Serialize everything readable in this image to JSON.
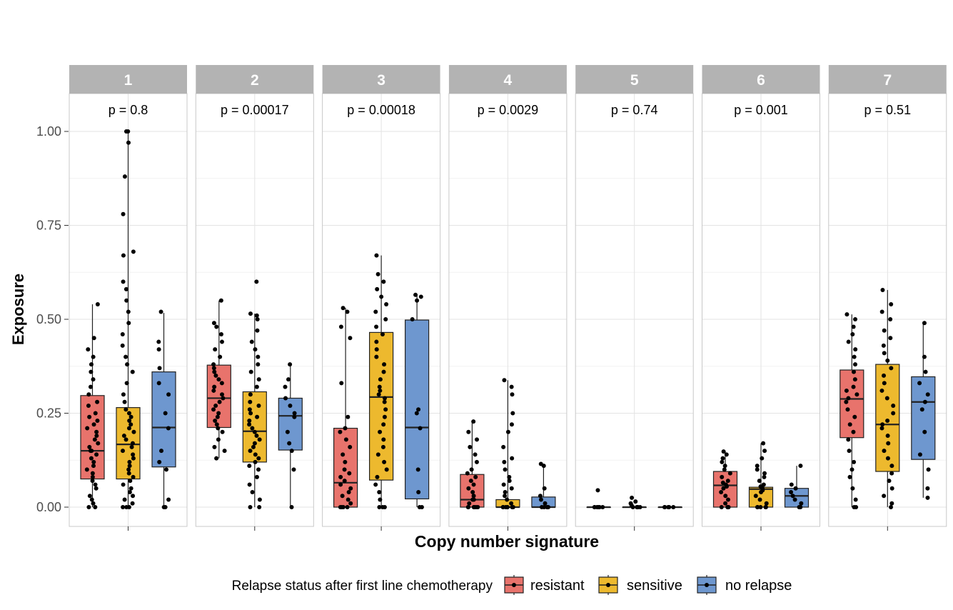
{
  "chart_data": {
    "type": "boxplot",
    "facet_var_label": "Copy number signature",
    "xlabel": "Copy number signature",
    "ylabel": "Exposure",
    "ylim": [
      -0.05,
      1.1
    ],
    "y_ticks": [
      0.0,
      0.25,
      0.5,
      0.75,
      1.0
    ],
    "y_tick_labels": [
      "0.00",
      "0.25",
      "0.50",
      "0.75",
      "1.00"
    ],
    "grid": true,
    "legend": {
      "title": "Relapse status after first line chemotherapy",
      "position": "bottom",
      "entries": [
        "resistant",
        "sensitive",
        "no relapse"
      ]
    },
    "colors": {
      "resistant": "#E8736C",
      "sensitive": "#EDB92E",
      "no relapse": "#6E97CF",
      "strip": "#B3B3B3",
      "points": "#000000"
    },
    "facets": [
      {
        "label": "1",
        "p_label": "p = 0.8",
        "boxes": [
          {
            "group": "resistant",
            "q1": 0.075,
            "median": 0.15,
            "q3": 0.297,
            "whisker_low": 0.0,
            "whisker_high": 0.54
          },
          {
            "group": "sensitive",
            "q1": 0.075,
            "median": 0.167,
            "q3": 0.265,
            "whisker_low": 0.0,
            "whisker_high": 1.0
          },
          {
            "group": "no relapse",
            "q1": 0.107,
            "median": 0.212,
            "q3": 0.36,
            "whisker_low": 0.0,
            "whisker_high": 0.517
          }
        ],
        "points": {
          "resistant": [
            0.0,
            0.0,
            0.01,
            0.02,
            0.03,
            0.05,
            0.06,
            0.07,
            0.08,
            0.09,
            0.1,
            0.11,
            0.12,
            0.13,
            0.14,
            0.15,
            0.15,
            0.16,
            0.17,
            0.18,
            0.19,
            0.2,
            0.21,
            0.22,
            0.23,
            0.24,
            0.25,
            0.27,
            0.28,
            0.3,
            0.32,
            0.34,
            0.36,
            0.38,
            0.4,
            0.42,
            0.45,
            0.54
          ],
          "sensitive": [
            0.0,
            0.0,
            0.0,
            0.01,
            0.02,
            0.03,
            0.04,
            0.05,
            0.06,
            0.07,
            0.08,
            0.09,
            0.1,
            0.11,
            0.12,
            0.13,
            0.14,
            0.15,
            0.16,
            0.17,
            0.18,
            0.19,
            0.2,
            0.21,
            0.22,
            0.23,
            0.24,
            0.25,
            0.26,
            0.28,
            0.3,
            0.33,
            0.36,
            0.38,
            0.4,
            0.43,
            0.46,
            0.49,
            0.52,
            0.55,
            0.58,
            0.6,
            0.67,
            0.68,
            0.78,
            0.88,
            0.97,
            1.0,
            1.0
          ],
          "no relapse": [
            0.0,
            0.0,
            0.02,
            0.1,
            0.12,
            0.15,
            0.21,
            0.25,
            0.3,
            0.33,
            0.37,
            0.42,
            0.44,
            0.52
          ]
        }
      },
      {
        "label": "2",
        "p_label": "p = 0.00017",
        "boxes": [
          {
            "group": "resistant",
            "q1": 0.212,
            "median": 0.29,
            "q3": 0.378,
            "whisker_low": 0.13,
            "whisker_high": 0.55
          },
          {
            "group": "sensitive",
            "q1": 0.12,
            "median": 0.202,
            "q3": 0.307,
            "whisker_low": 0.0,
            "whisker_high": 0.515
          },
          {
            "group": "no relapse",
            "q1": 0.152,
            "median": 0.243,
            "q3": 0.29,
            "whisker_low": 0.0,
            "whisker_high": 0.38
          }
        ],
        "points": {
          "resistant": [
            0.13,
            0.15,
            0.16,
            0.18,
            0.2,
            0.21,
            0.22,
            0.23,
            0.24,
            0.25,
            0.26,
            0.27,
            0.28,
            0.29,
            0.3,
            0.31,
            0.32,
            0.33,
            0.34,
            0.35,
            0.36,
            0.37,
            0.38,
            0.4,
            0.42,
            0.44,
            0.46,
            0.48,
            0.49,
            0.55
          ],
          "sensitive": [
            0.0,
            0.0,
            0.02,
            0.04,
            0.06,
            0.08,
            0.1,
            0.11,
            0.12,
            0.13,
            0.14,
            0.15,
            0.16,
            0.17,
            0.18,
            0.19,
            0.2,
            0.21,
            0.22,
            0.23,
            0.24,
            0.25,
            0.26,
            0.27,
            0.28,
            0.3,
            0.32,
            0.34,
            0.36,
            0.38,
            0.4,
            0.42,
            0.44,
            0.47,
            0.5,
            0.51,
            0.515,
            0.6
          ],
          "no relapse": [
            0.0,
            0.1,
            0.15,
            0.17,
            0.2,
            0.24,
            0.25,
            0.27,
            0.29,
            0.32,
            0.34,
            0.38
          ]
        }
      },
      {
        "label": "3",
        "p_label": "p = 0.00018",
        "boxes": [
          {
            "group": "resistant",
            "q1": 0.0,
            "median": 0.065,
            "q3": 0.21,
            "whisker_low": 0.0,
            "whisker_high": 0.53
          },
          {
            "group": "sensitive",
            "q1": 0.072,
            "median": 0.293,
            "q3": 0.465,
            "whisker_low": 0.0,
            "whisker_high": 0.67
          },
          {
            "group": "no relapse",
            "q1": 0.022,
            "median": 0.212,
            "q3": 0.498,
            "whisker_low": 0.0,
            "whisker_high": 0.565
          }
        ],
        "points": {
          "resistant": [
            0.0,
            0.0,
            0.0,
            0.0,
            0.01,
            0.02,
            0.03,
            0.04,
            0.05,
            0.06,
            0.07,
            0.08,
            0.09,
            0.1,
            0.12,
            0.14,
            0.16,
            0.18,
            0.2,
            0.21,
            0.24,
            0.33,
            0.45,
            0.48,
            0.52,
            0.53
          ],
          "sensitive": [
            0.0,
            0.0,
            0.0,
            0.02,
            0.04,
            0.06,
            0.08,
            0.1,
            0.12,
            0.14,
            0.16,
            0.18,
            0.2,
            0.22,
            0.24,
            0.26,
            0.28,
            0.29,
            0.3,
            0.31,
            0.32,
            0.34,
            0.36,
            0.38,
            0.4,
            0.42,
            0.44,
            0.46,
            0.48,
            0.5,
            0.52,
            0.54,
            0.56,
            0.58,
            0.6,
            0.62,
            0.67
          ],
          "no relapse": [
            0.0,
            0.0,
            0.04,
            0.1,
            0.21,
            0.25,
            0.26,
            0.5,
            0.55,
            0.56,
            0.565
          ]
        }
      },
      {
        "label": "4",
        "p_label": "p = 0.0029",
        "boxes": [
          {
            "group": "resistant",
            "q1": 0.0,
            "median": 0.02,
            "q3": 0.087,
            "whisker_low": 0.0,
            "whisker_high": 0.228
          },
          {
            "group": "sensitive",
            "q1": 0.0,
            "median": 0.0,
            "q3": 0.02,
            "whisker_low": 0.0,
            "whisker_high": 0.338
          },
          {
            "group": "no relapse",
            "q1": 0.0,
            "median": 0.0,
            "q3": 0.027,
            "whisker_low": 0.0,
            "whisker_high": 0.115
          }
        ],
        "points": {
          "resistant": [
            0.0,
            0.0,
            0.0,
            0.0,
            0.0,
            0.0,
            0.01,
            0.02,
            0.02,
            0.03,
            0.04,
            0.05,
            0.06,
            0.07,
            0.08,
            0.09,
            0.1,
            0.12,
            0.14,
            0.16,
            0.18,
            0.2,
            0.228
          ],
          "sensitive": [
            0.0,
            0.0,
            0.0,
            0.0,
            0.0,
            0.0,
            0.0,
            0.01,
            0.02,
            0.03,
            0.04,
            0.05,
            0.06,
            0.07,
            0.08,
            0.1,
            0.12,
            0.13,
            0.16,
            0.2,
            0.22,
            0.25,
            0.3,
            0.32,
            0.338
          ],
          "no relapse": [
            0.0,
            0.0,
            0.0,
            0.0,
            0.0,
            0.01,
            0.02,
            0.03,
            0.05,
            0.11,
            0.115
          ]
        }
      },
      {
        "label": "5",
        "p_label": "p = 0.74",
        "boxes": [
          {
            "group": "resistant",
            "q1": 0.0,
            "median": 0.0,
            "q3": 0.0,
            "whisker_low": 0.0,
            "whisker_high": 0.0
          },
          {
            "group": "sensitive",
            "q1": 0.0,
            "median": 0.0,
            "q3": 0.0,
            "whisker_low": 0.0,
            "whisker_high": 0.0
          },
          {
            "group": "no relapse",
            "q1": 0.0,
            "median": 0.0,
            "q3": 0.0,
            "whisker_low": 0.0,
            "whisker_high": 0.0
          }
        ],
        "points": {
          "resistant": [
            0.0,
            0.0,
            0.0,
            0.0,
            0.0,
            0.0,
            0.045
          ],
          "sensitive": [
            0.0,
            0.0,
            0.0,
            0.0,
            0.0,
            0.005,
            0.01,
            0.015,
            0.025
          ],
          "no relapse": [
            0.0,
            0.0,
            0.0,
            0.0,
            0.0
          ]
        }
      },
      {
        "label": "6",
        "p_label": "p = 0.001",
        "boxes": [
          {
            "group": "resistant",
            "q1": 0.0,
            "median": 0.058,
            "q3": 0.095,
            "whisker_low": 0.0,
            "whisker_high": 0.148
          },
          {
            "group": "sensitive",
            "q1": 0.0,
            "median": 0.048,
            "q3": 0.053,
            "whisker_low": 0.0,
            "whisker_high": 0.17
          },
          {
            "group": "no relapse",
            "q1": 0.0,
            "median": 0.03,
            "q3": 0.05,
            "whisker_low": 0.0,
            "whisker_high": 0.11
          }
        ],
        "points": {
          "resistant": [
            0.0,
            0.0,
            0.0,
            0.0,
            0.01,
            0.02,
            0.03,
            0.04,
            0.05,
            0.055,
            0.06,
            0.065,
            0.07,
            0.08,
            0.09,
            0.1,
            0.11,
            0.12,
            0.13,
            0.14,
            0.148
          ],
          "sensitive": [
            0.0,
            0.0,
            0.0,
            0.0,
            0.0,
            0.01,
            0.02,
            0.03,
            0.04,
            0.045,
            0.05,
            0.055,
            0.06,
            0.07,
            0.08,
            0.09,
            0.1,
            0.11,
            0.13,
            0.15,
            0.17
          ],
          "no relapse": [
            0.0,
            0.0,
            0.01,
            0.02,
            0.03,
            0.04,
            0.05,
            0.06,
            0.11
          ]
        }
      },
      {
        "label": "7",
        "p_label": "p = 0.51",
        "boxes": [
          {
            "group": "resistant",
            "q1": 0.185,
            "median": 0.288,
            "q3": 0.365,
            "whisker_low": 0.0,
            "whisker_high": 0.513
          },
          {
            "group": "sensitive",
            "q1": 0.095,
            "median": 0.22,
            "q3": 0.38,
            "whisker_low": 0.0,
            "whisker_high": 0.578
          },
          {
            "group": "no relapse",
            "q1": 0.127,
            "median": 0.28,
            "q3": 0.347,
            "whisker_low": 0.025,
            "whisker_high": 0.49
          }
        ],
        "points": {
          "resistant": [
            0.0,
            0.0,
            0.02,
            0.05,
            0.08,
            0.1,
            0.12,
            0.15,
            0.18,
            0.2,
            0.22,
            0.24,
            0.26,
            0.28,
            0.29,
            0.3,
            0.31,
            0.32,
            0.34,
            0.36,
            0.38,
            0.4,
            0.42,
            0.44,
            0.46,
            0.48,
            0.5,
            0.513
          ],
          "sensitive": [
            0.0,
            0.01,
            0.03,
            0.05,
            0.07,
            0.09,
            0.11,
            0.13,
            0.15,
            0.17,
            0.19,
            0.21,
            0.22,
            0.23,
            0.25,
            0.27,
            0.29,
            0.31,
            0.33,
            0.35,
            0.37,
            0.39,
            0.41,
            0.43,
            0.45,
            0.47,
            0.5,
            0.52,
            0.54,
            0.578
          ],
          "no relapse": [
            0.025,
            0.05,
            0.1,
            0.14,
            0.2,
            0.26,
            0.28,
            0.3,
            0.33,
            0.36,
            0.4,
            0.49
          ]
        }
      }
    ]
  }
}
